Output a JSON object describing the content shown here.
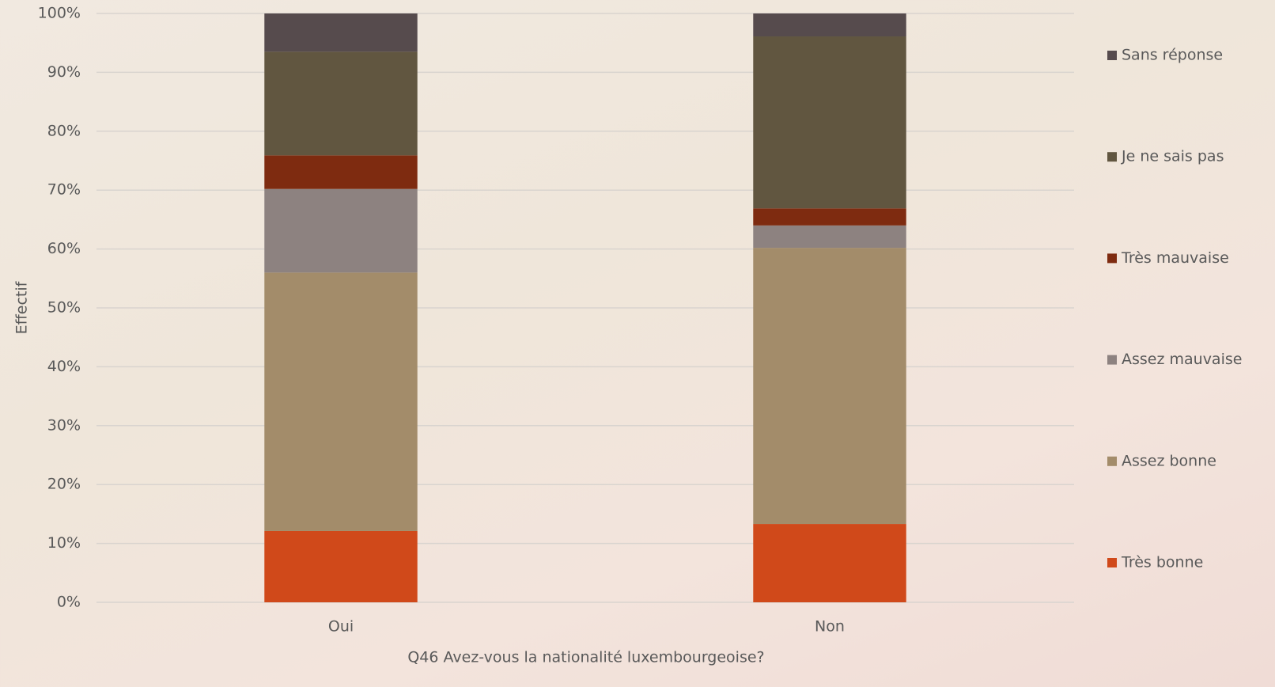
{
  "chart_data": {
    "type": "stacked_bar",
    "x_label": "Q46 Avez-vous la nationalité luxembourgeoise?",
    "y_label": "Effectif",
    "categories": [
      "Oui",
      "Non"
    ],
    "series": [
      {
        "name": "Très bonne",
        "color": "#d0491a",
        "values": [
          12.1,
          13.3
        ]
      },
      {
        "name": "Assez bonne",
        "color": "#a38c6a",
        "values": [
          43.9,
          46.9
        ]
      },
      {
        "name": "Assez mauvaise",
        "color": "#8d8280",
        "values": [
          14.2,
          3.8
        ]
      },
      {
        "name": "Très mauvaise",
        "color": "#7e2b10",
        "values": [
          5.7,
          2.9
        ]
      },
      {
        "name": "Je ne sais pas",
        "color": "#615640",
        "values": [
          17.6,
          29.2
        ]
      },
      {
        "name": "Sans réponse",
        "color": "#564b4d",
        "values": [
          6.5,
          3.9
        ]
      }
    ],
    "ylim": [
      0,
      100
    ],
    "yticks": [
      {
        "value": 0,
        "label": "0%"
      },
      {
        "value": 10,
        "label": "10%"
      },
      {
        "value": 20,
        "label": "20%"
      },
      {
        "value": 30,
        "label": "30%"
      },
      {
        "value": 40,
        "label": "40%"
      },
      {
        "value": 50,
        "label": "50%"
      },
      {
        "value": 60,
        "label": "60%"
      },
      {
        "value": 70,
        "label": "70%"
      },
      {
        "value": 80,
        "label": "80%"
      },
      {
        "value": 90,
        "label": "90%"
      },
      {
        "value": 100,
        "label": "100%"
      }
    ],
    "grid": true,
    "legend": "right"
  }
}
